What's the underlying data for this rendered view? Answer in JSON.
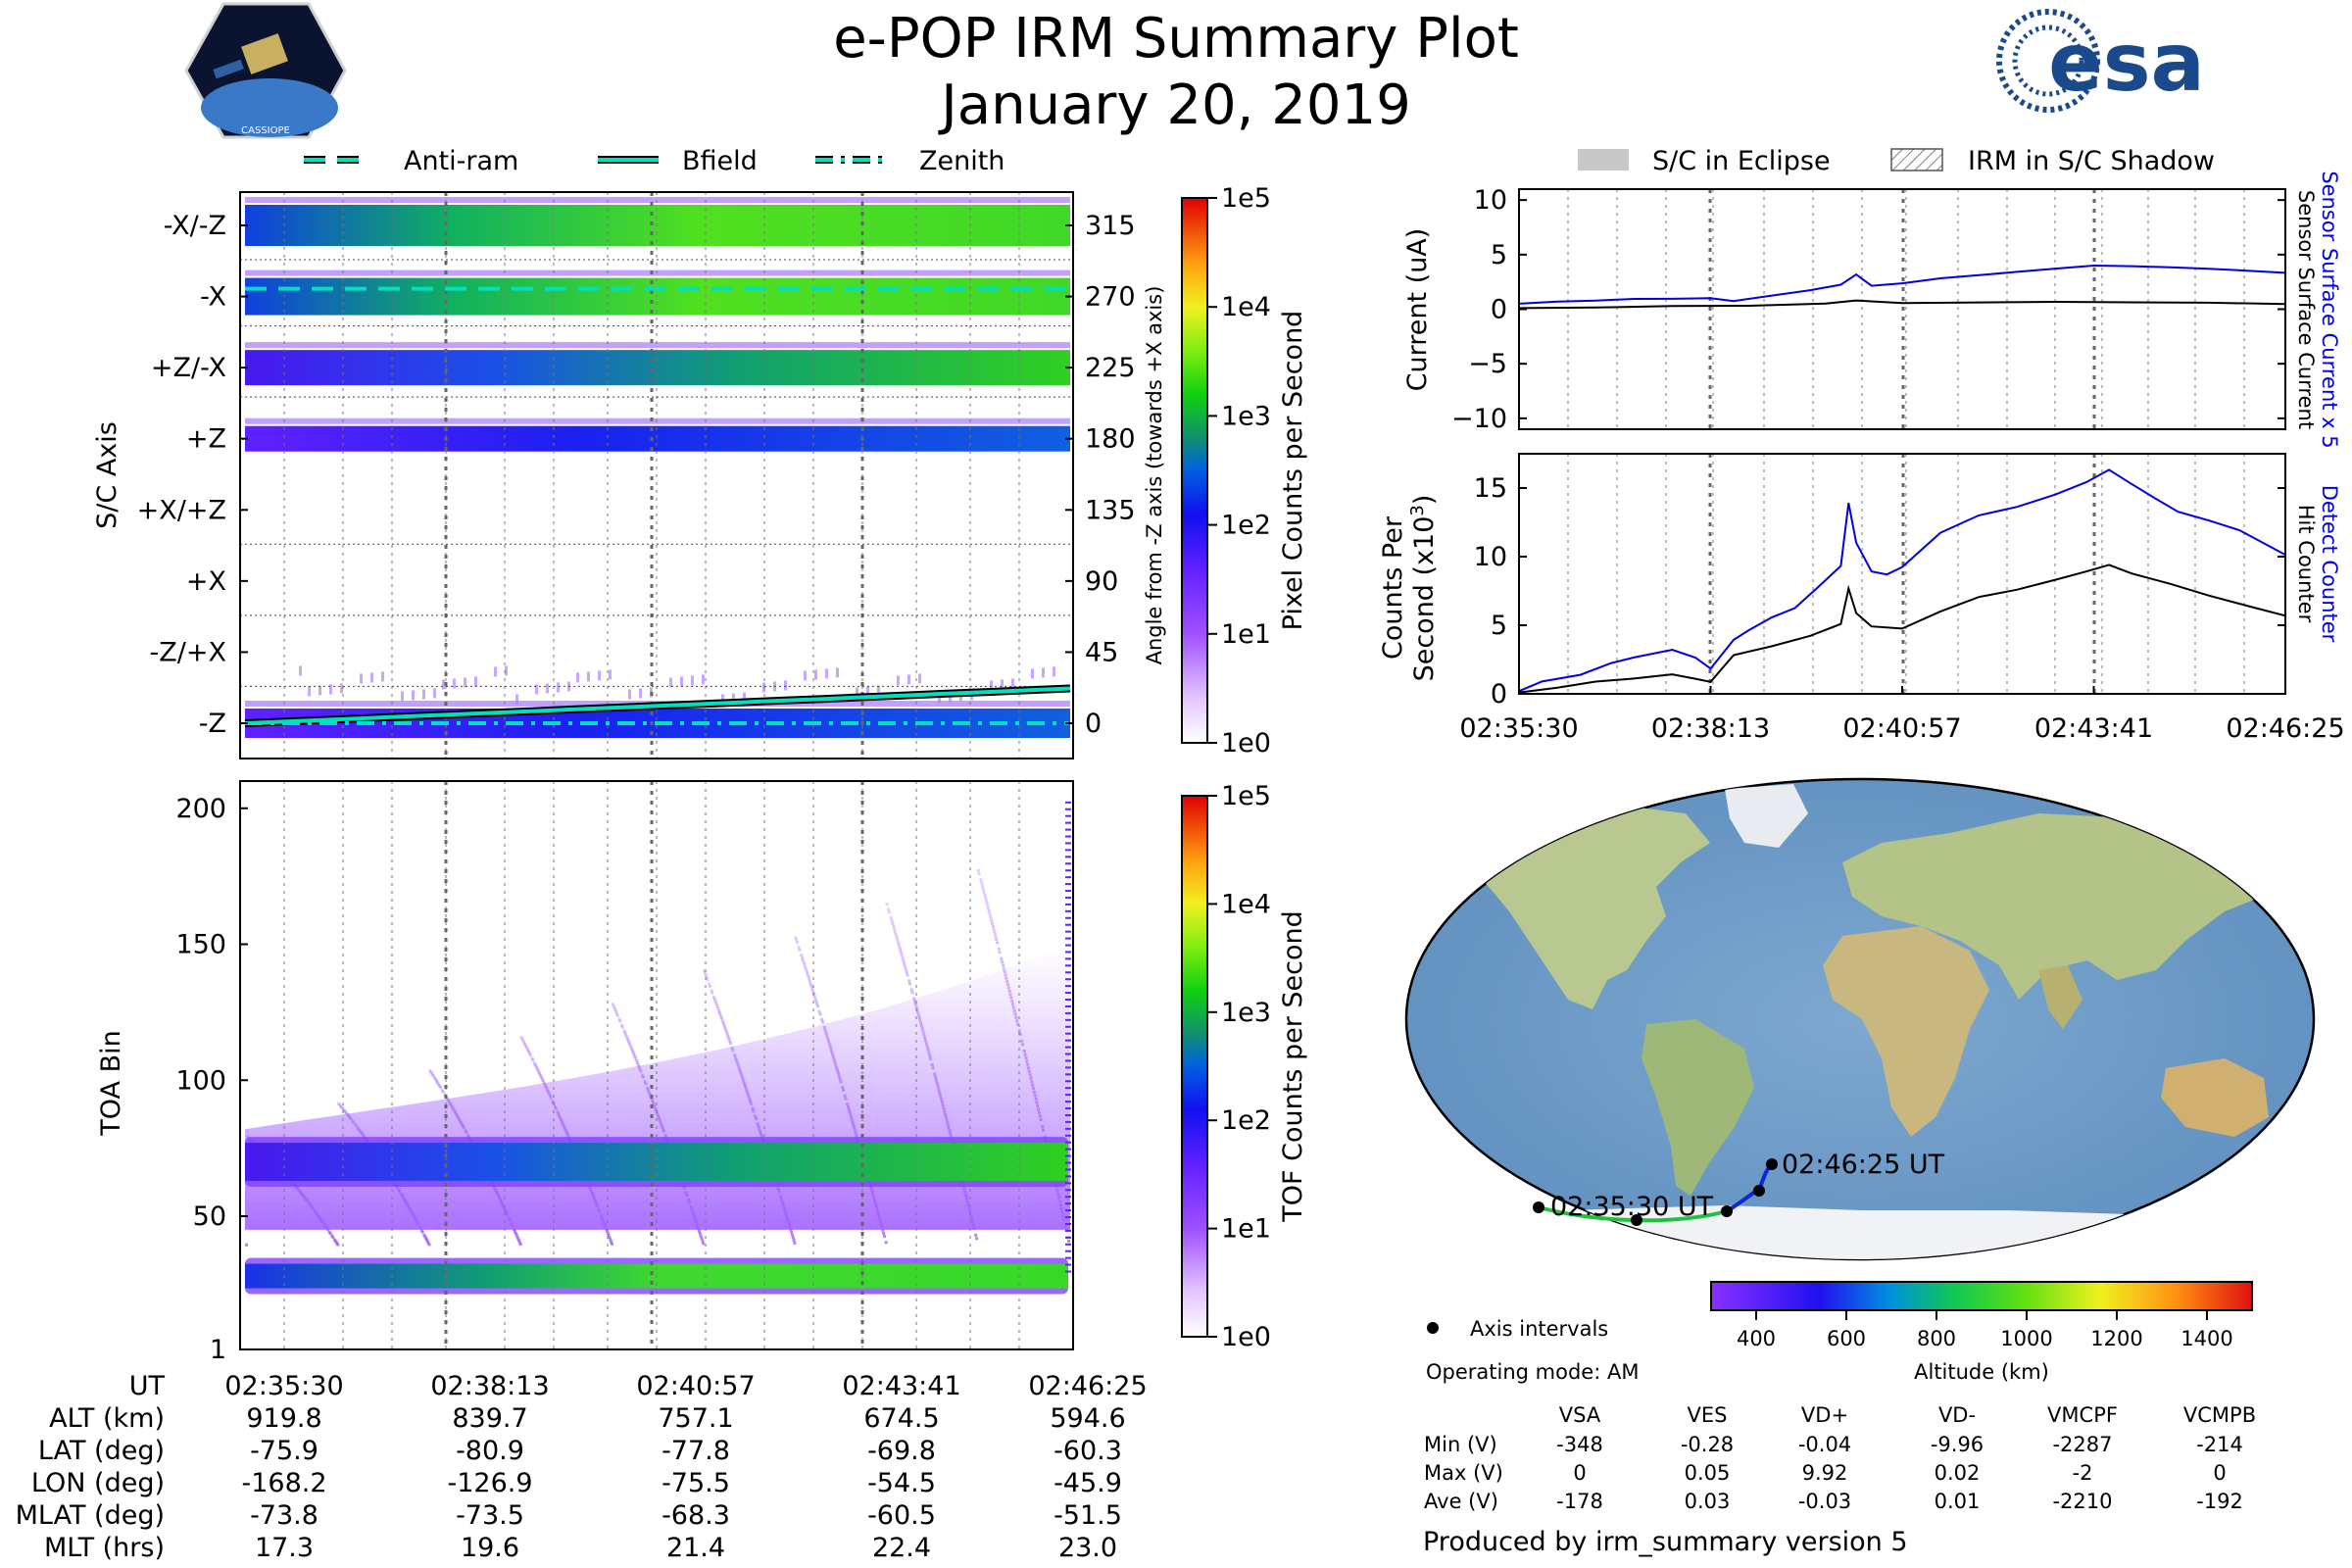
{
  "title": "e-POP IRM Summary Plot",
  "date": "January 20, 2019",
  "logos": {
    "left_text": "CASSIOPE",
    "right_text": "esa"
  },
  "legend_top_left": [
    {
      "label": "Anti-ram",
      "style": "dashed"
    },
    {
      "label": "Bfield",
      "style": "solid"
    },
    {
      "label": "Zenith",
      "style": "dashdot"
    }
  ],
  "legend_top_right": [
    {
      "label": "S/C in Eclipse",
      "style": "filled"
    },
    {
      "label": "IRM in S/C Shadow",
      "style": "hatched"
    }
  ],
  "colors": {
    "trace_blue": "#0000e0",
    "trace_black": "#000000",
    "track_green": "#22c040",
    "track_blue": "#0a2ad8",
    "line_cyan": "#00e0c0"
  },
  "time_ticks": [
    "02:35:30",
    "02:38:13",
    "02:40:57",
    "02:43:41",
    "02:46:25"
  ],
  "chart_data": [
    {
      "id": "sc_axis",
      "type": "heatmap",
      "ylabel": "S/C Axis",
      "y_categories": [
        "-X/-Z",
        "-X",
        "+Z/-X",
        "+Z",
        "+X/+Z",
        "+X",
        "-Z/+X",
        "-Z"
      ],
      "y2_ticks": [
        315,
        270,
        225,
        180,
        135,
        90,
        45,
        0
      ],
      "y2label": "Angle from -Z axis (towards +X axis)",
      "colorbar_label": "Pixel Counts per Second",
      "colorbar_ticks": [
        "1e5",
        "1e4",
        "1e3",
        "1e2",
        "1e1",
        "1e0"
      ],
      "bfield_angle_range": [
        0,
        22
      ]
    },
    {
      "id": "toa",
      "type": "heatmap",
      "ylabel": "TOA Bin",
      "y_ticks": [
        200,
        150,
        100,
        50,
        1
      ],
      "ylim": [
        1,
        210
      ],
      "colorbar_label": "TOF Counts per Second",
      "colorbar_ticks": [
        "1e5",
        "1e4",
        "1e3",
        "1e2",
        "1e1",
        "1e0"
      ],
      "bands": [
        {
          "center": 70,
          "width": 14
        },
        {
          "center": 28,
          "width": 9
        }
      ]
    },
    {
      "id": "current",
      "type": "line",
      "ylabel": "Current (uA)",
      "ylim": [
        -11,
        11
      ],
      "y_ticks": [
        10,
        5,
        0,
        -5,
        -10
      ],
      "series": [
        {
          "name": "Sensor Surface Current x 5",
          "color": "#0000e0",
          "x": [
            0,
            0.05,
            0.1,
            0.15,
            0.2,
            0.25,
            0.28,
            0.33,
            0.38,
            0.42,
            0.44,
            0.46,
            0.5,
            0.55,
            0.6,
            0.65,
            0.7,
            0.75,
            0.8,
            0.85,
            0.9,
            0.95,
            1.0
          ],
          "values": [
            0.5,
            0.6,
            0.6,
            0.7,
            0.7,
            0.8,
            0.6,
            1.2,
            1.8,
            2.4,
            3.4,
            2.4,
            2.6,
            3.0,
            3.2,
            3.4,
            3.6,
            3.8,
            3.7,
            3.6,
            3.5,
            3.4,
            3.3
          ]
        },
        {
          "name": "Sensor Surface Current",
          "color": "#000000",
          "x": [
            0,
            0.1,
            0.2,
            0.3,
            0.4,
            0.44,
            0.5,
            0.6,
            0.7,
            0.8,
            0.9,
            1.0
          ],
          "values": [
            0.1,
            0.1,
            0.2,
            0.2,
            0.4,
            0.7,
            0.5,
            0.6,
            0.7,
            0.7,
            0.7,
            0.6
          ]
        }
      ]
    },
    {
      "id": "counts",
      "type": "line",
      "ylabel": "Counts Per Second (x10³)",
      "ylim": [
        0,
        17.5
      ],
      "y_ticks": [
        15,
        10,
        5,
        0
      ],
      "series": [
        {
          "name": "Detect Counter",
          "color": "#0000e0",
          "x": [
            0,
            0.03,
            0.08,
            0.12,
            0.15,
            0.2,
            0.23,
            0.25,
            0.28,
            0.3,
            0.33,
            0.36,
            0.39,
            0.42,
            0.43,
            0.44,
            0.46,
            0.48,
            0.5,
            0.55,
            0.6,
            0.65,
            0.7,
            0.74,
            0.77,
            0.8,
            0.83,
            0.86,
            0.9,
            0.94,
            0.97,
            1.0
          ],
          "values": [
            0.2,
            0.8,
            1.2,
            2.0,
            2.4,
            3.0,
            2.5,
            1.8,
            4.0,
            4.8,
            5.8,
            6.5,
            8.0,
            9.5,
            14.0,
            11.0,
            8.8,
            8.5,
            9.0,
            11.5,
            12.8,
            13.5,
            14.5,
            15.5,
            16.5,
            15.5,
            14.5,
            13.5,
            12.8,
            12.0,
            11.0,
            10.0
          ]
        },
        {
          "name": "Hit Counter",
          "color": "#000000",
          "x": [
            0,
            0.05,
            0.1,
            0.15,
            0.2,
            0.23,
            0.25,
            0.28,
            0.33,
            0.38,
            0.42,
            0.43,
            0.44,
            0.46,
            0.5,
            0.55,
            0.6,
            0.65,
            0.7,
            0.74,
            0.77,
            0.8,
            0.85,
            0.9,
            0.95,
            1.0
          ],
          "values": [
            0.1,
            0.4,
            0.8,
            1.0,
            1.3,
            1.0,
            0.8,
            2.8,
            3.5,
            4.3,
            5.2,
            7.8,
            6.0,
            5.0,
            4.8,
            6.0,
            7.0,
            7.5,
            8.2,
            8.8,
            9.3,
            8.7,
            8.0,
            7.2,
            6.5,
            5.8
          ]
        }
      ]
    },
    {
      "id": "altitude_colorbar",
      "type": "bar",
      "label": "Altitude (km)",
      "ticks": [
        400,
        600,
        800,
        1000,
        1200,
        1400
      ],
      "range": [
        300,
        1500
      ]
    }
  ],
  "map": {
    "start_label": "02:35:30 UT",
    "end_label": "02:46:25 UT",
    "legend": "Axis intervals",
    "operating_mode": "Operating mode: AM"
  },
  "ephemeris": {
    "headers": [
      "UT",
      "ALT (km)",
      "LAT (deg)",
      "LON (deg)",
      "MLAT (deg)",
      "MLT (hrs)"
    ],
    "columns": [
      [
        "02:35:30",
        "919.8",
        "-75.9",
        "-168.2",
        "-73.8",
        "17.3"
      ],
      [
        "02:38:13",
        "839.7",
        "-80.9",
        "-126.9",
        "-73.5",
        "19.6"
      ],
      [
        "02:40:57",
        "757.1",
        "-77.8",
        "-75.5",
        "-68.3",
        "21.4"
      ],
      [
        "02:43:41",
        "674.5",
        "-69.8",
        "-54.5",
        "-60.5",
        "22.4"
      ],
      [
        "02:46:25",
        "594.6",
        "-60.3",
        "-45.9",
        "-51.5",
        "23.0"
      ]
    ]
  },
  "voltages": {
    "headers": [
      "VSA",
      "VES",
      "VD+",
      "VD-",
      "VMCPF",
      "VCMPB"
    ],
    "rows": [
      {
        "label": "Min (V)",
        "values": [
          "-348",
          "-0.28",
          "-0.04",
          "-9.96",
          "-2287",
          "-214"
        ]
      },
      {
        "label": "Max (V)",
        "values": [
          "0",
          "0.05",
          "9.92",
          "0.02",
          "-2",
          "0"
        ]
      },
      {
        "label": "Ave (V)",
        "values": [
          "-178",
          "0.03",
          "-0.03",
          "0.01",
          "-2210",
          "-192"
        ]
      }
    ]
  },
  "footer": "Produced by irm_summary version 5"
}
